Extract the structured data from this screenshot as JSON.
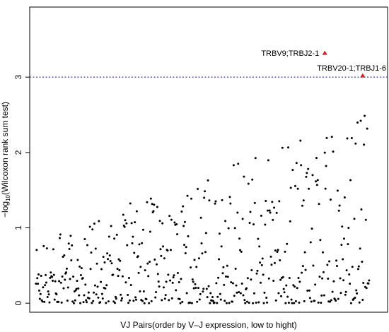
{
  "chart_data": {
    "type": "scatter",
    "title": "",
    "xlabel": "VJ Pairs(order by V–J expression, low to hight)",
    "ylabel_prefix": "−log",
    "ylabel_subscript": "10",
    "ylabel_suffix": "(Wilcoxon rank sum test)",
    "ylim": [
      -0.12,
      3.93
    ],
    "xlim": [
      0,
      540
    ],
    "yticks": [
      0,
      1,
      2,
      3
    ],
    "ytick_labels": [
      "0",
      "1",
      "2",
      "3"
    ],
    "threshold": {
      "y": 3.0,
      "color": "#4a4ad8",
      "style": "dotted"
    },
    "point_color": "#000000",
    "highlight_color": "#d42020",
    "highlights": [
      {
        "label": "TRBV9;TRBJ2-1",
        "x": 451,
        "y": 3.32
      },
      {
        "label": "TRBV20-1;TRBJ1-6",
        "x": 510,
        "y": 3.02
      }
    ],
    "n_points": 520,
    "x_range": [
      1,
      520
    ],
    "y_upper_envelope": [
      [
        0,
        0.85
      ],
      [
        60,
        0.95
      ],
      [
        130,
        1.3
      ],
      [
        200,
        1.5
      ],
      [
        260,
        1.6
      ],
      [
        320,
        1.9
      ],
      [
        380,
        2.05
      ],
      [
        440,
        2.25
      ],
      [
        480,
        2.3
      ],
      [
        520,
        2.75
      ]
    ]
  }
}
